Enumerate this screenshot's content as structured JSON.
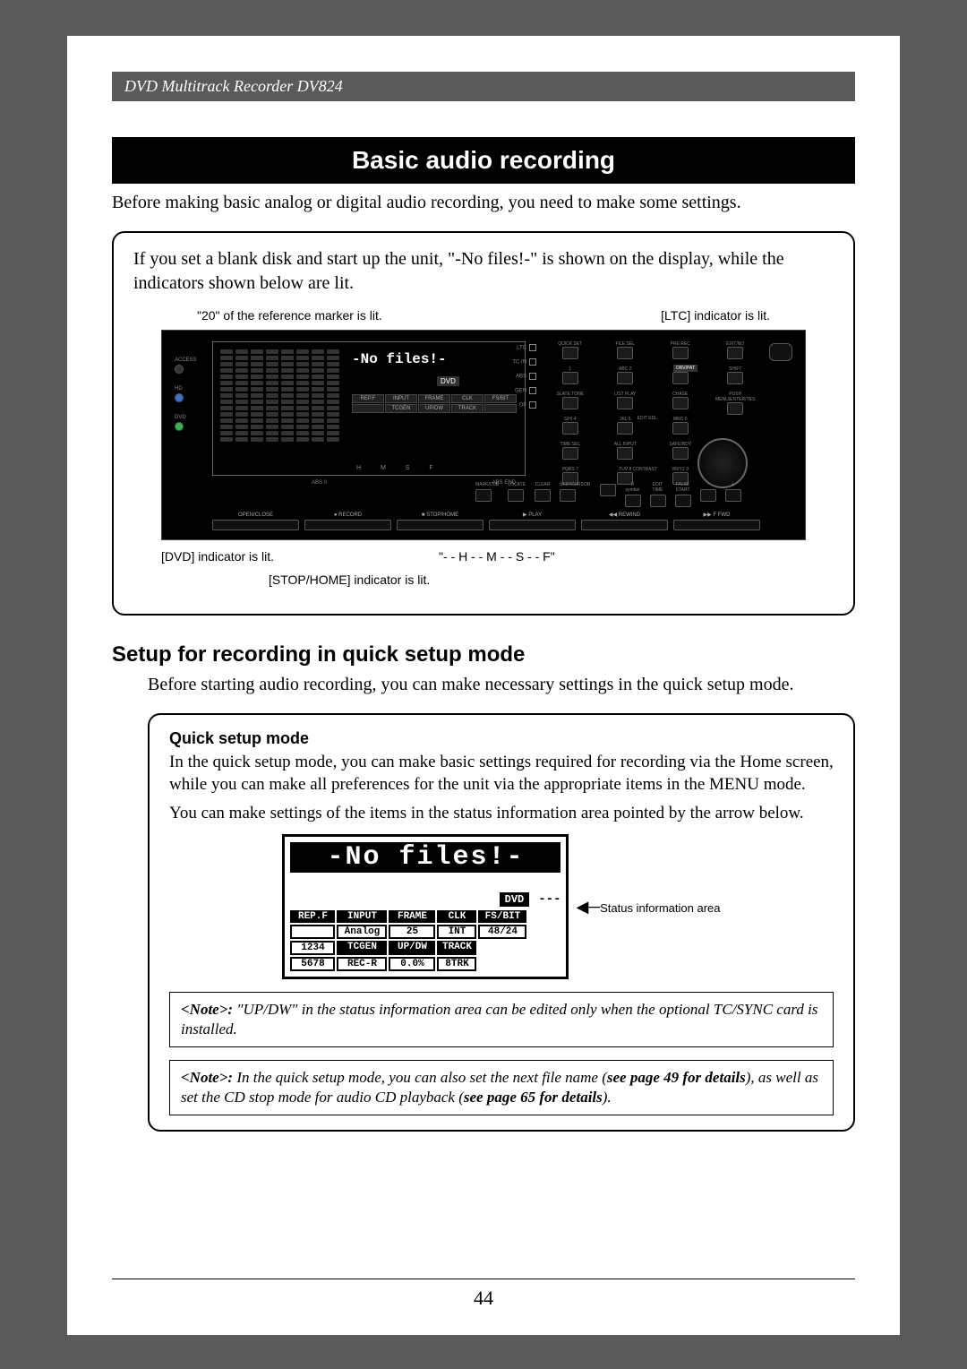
{
  "header": "DVD Multitrack Recorder DV824",
  "title": "Basic audio recording",
  "intro": "Before making basic analog or digital audio recording, you need to make some settings.",
  "callout1": {
    "text": "If you set a blank disk and start up the unit, \"-No files!-\" is shown on the display, while the indicators shown below are lit.",
    "anno_top_left": "\"20\" of the reference marker is lit.",
    "anno_top_right": "[LTC] indicator is lit.",
    "anno_bot_1": "[DVD] indicator is lit.",
    "anno_bot_2": "[STOP/HOME] indicator is lit.",
    "anno_bot_3": "\"- - H - - M - - S - - F\""
  },
  "device": {
    "lcd_title": "-No files!-",
    "lcd_dvd": "DVD",
    "status_headers": [
      "REP.F",
      "INPUT",
      "FRAME",
      "CLK",
      "FS/BIT"
    ],
    "status_row2": [
      "",
      "TCGEN",
      "UP/DW",
      "TRACK",
      ""
    ],
    "side_ind": [
      "LTC",
      "TC IN",
      "ABS",
      "GEN",
      "DF"
    ],
    "led_labels": [
      "ACCESS",
      "HD",
      "DVD"
    ],
    "led_colors": [
      "#333333",
      "#3a6fd8",
      "#2fb84d"
    ],
    "buttons_top": [
      {
        "label": "QUICK SET"
      },
      {
        "label": "FILE SEL"
      },
      {
        "label": "PRE REC"
      },
      {
        "label": "EXIT/NO"
      },
      {
        "label": "1"
      },
      {
        "label": "ABC 2"
      },
      {
        "label": "DEF 3"
      },
      {
        "label": "SHIFT"
      },
      {
        "label": "SLATE TONE"
      },
      {
        "label": "LIST PLAY"
      },
      {
        "label": "CHASE"
      },
      {
        "label": "PUSH MENU/ENTER/YES"
      },
      {
        "label": "GHI 4"
      },
      {
        "label": "JKL 5"
      },
      {
        "label": "MNO 6"
      },
      {
        "label": ""
      },
      {
        "label": "TIME SEL"
      },
      {
        "label": "ALL INPUT"
      },
      {
        "label": "SAFE/RDY"
      },
      {
        "label": ""
      },
      {
        "label": "PQRS 7"
      },
      {
        "label": "TUV 8"
      },
      {
        "label": "WXYZ 9"
      },
      {
        "label": ""
      }
    ],
    "bottom_btns": [
      {
        "label": "MARK/CUE"
      },
      {
        "label": "LOCATE"
      },
      {
        "label": "CLEAR"
      },
      {
        "label": "SKIP/CURSOR"
      },
      {
        "label": ""
      },
      {
        "label": "0 symbol"
      },
      {
        "label": "EDIT TIME"
      },
      {
        "label": "FALSE START"
      },
      {
        "label": "-"
      },
      {
        "label": "+"
      }
    ],
    "lcd_hmsf": "H      M      S      F",
    "lcd_abs": "ABS 0",
    "lcd_absend": "ABS END",
    "contrast": "CONTRAST",
    "editedl": "EDIT EDL",
    "drvpat": "DRV/PAT",
    "transport": [
      "OPEN/CLOSE",
      "● RECORD",
      "■ STOP/HOME",
      "▶ PLAY",
      "◀◀ REWIND",
      "▶▶ F FWD"
    ]
  },
  "section2": {
    "h2": "Setup for recording in quick setup mode",
    "body": "Before starting audio recording, you can make necessary settings in the quick setup mode."
  },
  "quickbox": {
    "h3": "Quick setup mode",
    "p1": "In the quick setup mode, you can make basic settings required for recording via the Home screen, while you can make all preferences for the unit via the appropriate items in the MENU mode.",
    "p2": "You can make settings of the items in the status information area pointed by the arrow below.",
    "zoom_title": "-No files!-",
    "zoom_dvd": "DVD",
    "zoom_dashes": "---",
    "zoom_grid_r1": [
      "REP.F",
      "INPUT",
      "FRAME",
      "CLK",
      "FS/BIT"
    ],
    "zoom_grid_r2": [
      "",
      "Analog",
      "25",
      "INT",
      "48/24"
    ],
    "zoom_grid_r3": [
      "1234",
      "TCGEN",
      "UP/DW",
      "TRACK",
      ""
    ],
    "zoom_grid_r4": [
      "5678",
      "REC-R",
      "0.0%",
      "8TRK",
      ""
    ],
    "arrow_label": "Status information area",
    "note1_pre": "<Note>:",
    "note1": "  \"UP/DW\" in the status information area can be edited only when the optional TC/SYNC card is installed.",
    "note2_pre": "<Note>:",
    "note2a": " In the quick setup mode, you can also set the next file name (",
    "note2b": "see page 49 for details",
    "note2c": "), as well as set the CD stop mode for audio CD playback (",
    "note2d": "see page 65 for details",
    "note2e": ")."
  },
  "page_num": "44"
}
